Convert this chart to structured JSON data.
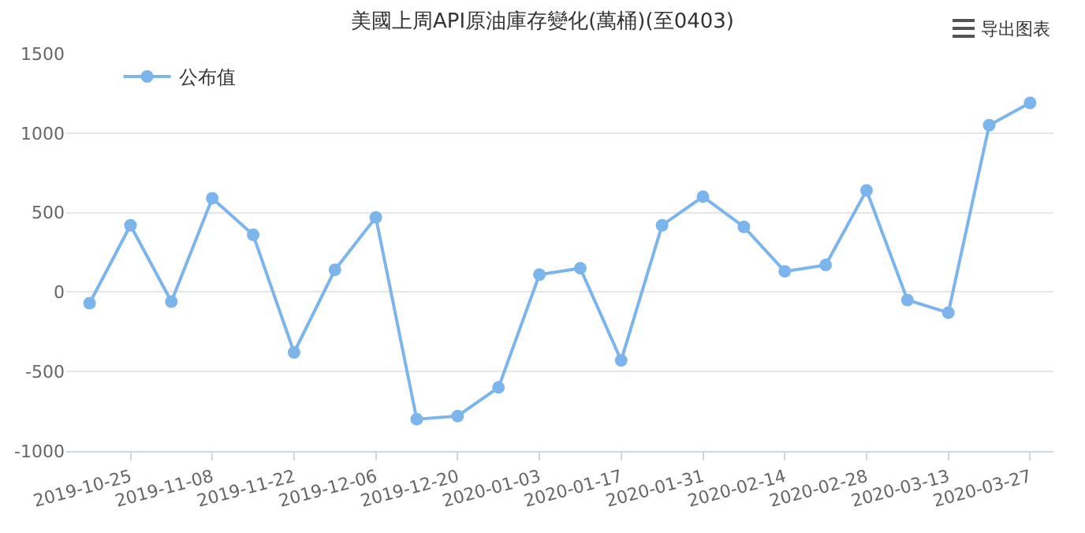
{
  "chart_data": {
    "type": "line",
    "title": "美國上周API原油庫存變化(萬桶)(至0403)",
    "x": [
      "2019-10-18",
      "2019-10-25",
      "2019-11-01",
      "2019-11-08",
      "2019-11-15",
      "2019-11-22",
      "2019-11-29",
      "2019-12-06",
      "2019-12-13",
      "2019-12-20",
      "2019-12-27",
      "2020-01-03",
      "2020-01-10",
      "2020-01-17",
      "2020-01-24",
      "2020-01-31",
      "2020-02-07",
      "2020-02-14",
      "2020-02-21",
      "2020-02-28",
      "2020-03-06",
      "2020-03-13",
      "2020-03-20",
      "2020-03-27"
    ],
    "series": [
      {
        "name": "公布值",
        "color": "#7cb5ec",
        "values": [
          -70,
          420,
          -60,
          590,
          360,
          -380,
          140,
          470,
          -800,
          -780,
          -600,
          110,
          150,
          -430,
          420,
          600,
          410,
          130,
          170,
          640,
          -50,
          -130,
          1050,
          1190
        ]
      }
    ],
    "xlim": [
      "2019-10-14",
      "2020-03-31"
    ],
    "xticks": [
      "2019-10-25",
      "2019-11-08",
      "2019-11-22",
      "2019-12-06",
      "2019-12-20",
      "2020-01-03",
      "2020-01-17",
      "2020-01-31",
      "2020-02-14",
      "2020-02-28",
      "2020-03-13",
      "2020-03-27"
    ],
    "ylim": [
      -1000,
      1500
    ],
    "yticks": [
      -1000,
      -500,
      0,
      500,
      1000,
      1500
    ],
    "grid": "y",
    "legend": "top left",
    "marker": "circle",
    "line_style": "solid",
    "annotations": [
      "导出图表"
    ]
  }
}
